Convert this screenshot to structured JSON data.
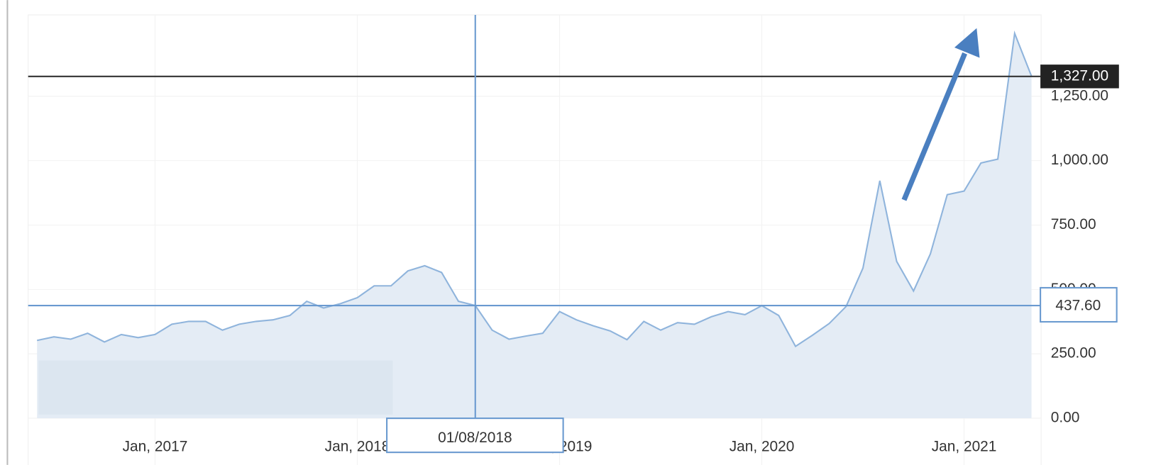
{
  "chart_data": {
    "type": "area",
    "categories": [
      null,
      null,
      null,
      null,
      null,
      null,
      null,
      "Jan, 2017",
      null,
      null,
      null,
      null,
      null,
      null,
      null,
      null,
      null,
      null,
      null,
      "Jan, 2018",
      null,
      null,
      null,
      null,
      null,
      null,
      null,
      null,
      null,
      null,
      null,
      "Jan, 2019",
      null,
      null,
      null,
      null,
      null,
      null,
      null,
      null,
      null,
      null,
      null,
      "Jan, 2020",
      null,
      null,
      null,
      null,
      null,
      null,
      null,
      null,
      null,
      null,
      null,
      "Jan, 2021",
      null,
      null,
      null,
      null
    ],
    "series": [
      {
        "color": "#8fb4dc",
        "values": [
          302,
          316,
          307,
          330,
          296,
          325,
          313,
          325,
          365,
          376,
          376,
          342,
          365,
          376,
          382,
          399,
          454,
          428,
          445,
          468,
          514,
          514,
          572,
          592,
          566,
          454,
          437.6,
          342,
          307,
          319,
          330,
          414,
          382,
          359,
          339,
          305,
          376,
          342,
          371,
          365,
          394,
          414,
          402,
          437,
          399,
          279,
          322,
          368,
          434,
          583,
          922,
          609,
          494,
          638,
          868,
          882,
          991,
          1006,
          1494,
          1328
        ]
      }
    ],
    "ylim": [
      -187,
      1566
    ],
    "yticks": [
      {
        "value": 0,
        "label": "0.00"
      },
      {
        "value": 250,
        "label": "250.00"
      },
      {
        "value": 500,
        "label": "500.00"
      },
      {
        "value": 750,
        "label": "750.00"
      },
      {
        "value": 1000,
        "label": "1,000.00"
      },
      {
        "value": 1250,
        "label": "1,250.00"
      }
    ],
    "hline": {
      "value": 1327,
      "label": "1,327.00"
    },
    "crosshair": {
      "date": "01/08/2018",
      "value": 437.6,
      "label": "437.60"
    },
    "grid": true
  }
}
